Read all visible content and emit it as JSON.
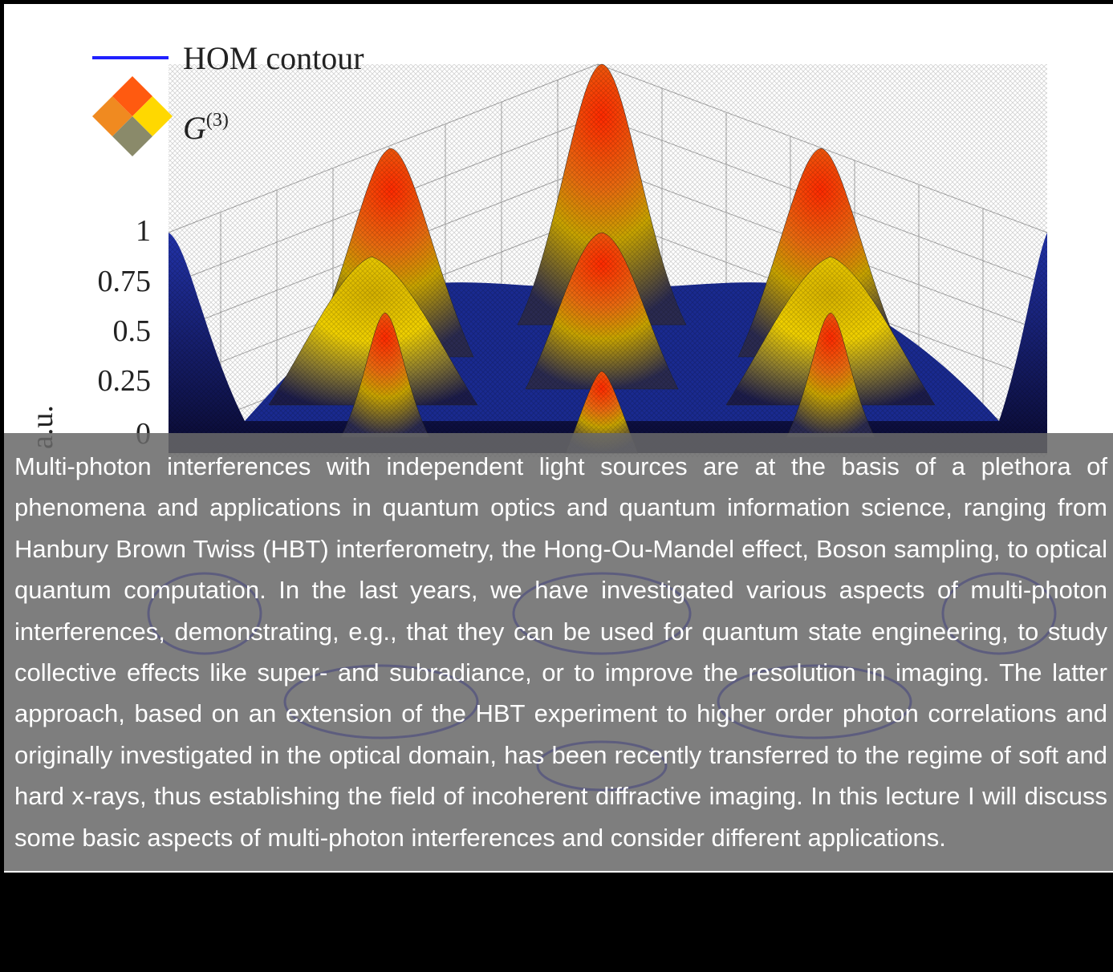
{
  "figure": {
    "legend": {
      "contour": "HOM contour",
      "surface": {
        "symbol": "G",
        "superscript": "(3)"
      }
    },
    "z_ticks": [
      "1",
      "0.75",
      "0.5",
      "0.25",
      "0"
    ],
    "z_label": "a.u."
  },
  "paragraph": "Multi-photon interferences with independent light sources are at the basis of a plethora of phenomena and applications in quantum optics and quantum information science, ranging from Hanbury Brown Twiss (HBT) interferometry, the Hong-Ou-Mandel effect, Boson sampling, to optical quantum computation. In the last years, we have investigated various aspects of multi-photon interferences, demonstrating, e.g., that they can be used for quantum state engineering, to study collective effects like super- and subradiance, or to improve the resolution in imaging. The latter approach, based on an extension of the HBT experiment to higher order photon correlations and originally investigated in the optical domain, has been recently transferred to the regime of soft and hard x-rays, thus establishing the field of incoherent diffractive imaging. In this lecture I will discuss some basic aspects of multi-photon interferences and consider different applications."
}
